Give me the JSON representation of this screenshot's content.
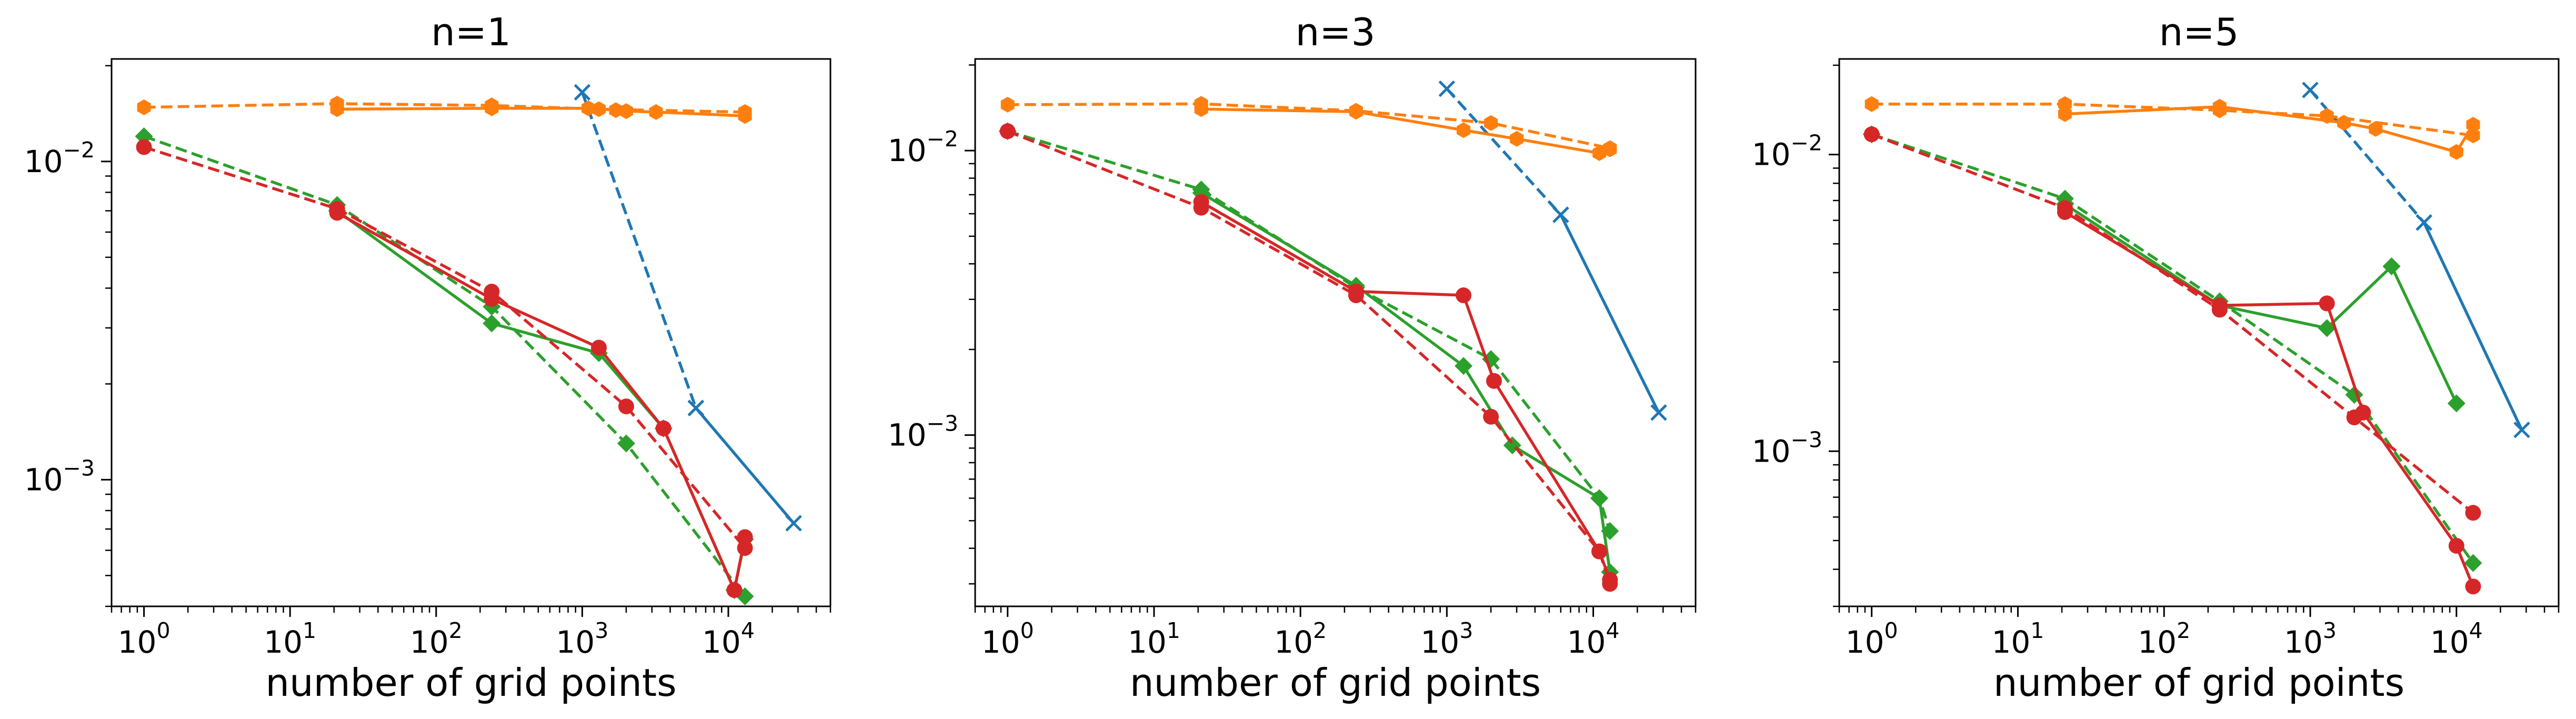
{
  "chart_data": [
    {
      "type": "line",
      "title": "n=1",
      "xlabel": "number of grid points",
      "ylabel": "",
      "xscale": "log",
      "yscale": "log",
      "xlim": [
        0.6,
        50000
      ],
      "ylim": [
        0.0004,
        0.021
      ],
      "xticks": [
        {
          "base": "10",
          "exp": "0",
          "value": 1
        },
        {
          "base": "10",
          "exp": "1",
          "value": 10
        },
        {
          "base": "10",
          "exp": "2",
          "value": 100
        },
        {
          "base": "10",
          "exp": "3",
          "value": 1000
        },
        {
          "base": "10",
          "exp": "4",
          "value": 10000
        }
      ],
      "yticks": [
        {
          "base": "10",
          "exp": "−2",
          "value": 0.01
        },
        {
          "base": "10",
          "exp": "−3",
          "value": 0.001
        }
      ],
      "grid": false,
      "legend": "none",
      "series": [
        {
          "color": "#1f77b4",
          "dash": true,
          "marker": "x",
          "points": [
            [
              1000,
              0.0165
            ],
            [
              6000,
              0.00168
            ]
          ]
        },
        {
          "color": "#1f77b4",
          "dash": false,
          "marker": "x",
          "points": [
            [
              6000,
              0.00168
            ],
            [
              28000,
              0.00073
            ]
          ]
        },
        {
          "color": "#ff7f0e",
          "dash": true,
          "marker": "hexagon",
          "points": [
            [
              1,
              0.0148
            ],
            [
              21,
              0.0152
            ],
            [
              240,
              0.015
            ],
            [
              1300,
              0.0146
            ],
            [
              13000,
              0.0143
            ]
          ]
        },
        {
          "color": "#ff7f0e",
          "dash": false,
          "marker": "hexagon",
          "points": [
            [
              21,
              0.0146
            ],
            [
              240,
              0.0147
            ],
            [
              1100,
              0.0147
            ],
            [
              1700,
              0.0145
            ],
            [
              2000,
              0.0144
            ],
            [
              3200,
              0.0143
            ],
            [
              13000,
              0.0139
            ]
          ]
        },
        {
          "color": "#2ca02c",
          "dash": true,
          "marker": "diamond",
          "points": [
            [
              1,
              0.012
            ],
            [
              21,
              0.0073
            ],
            [
              240,
              0.0035
            ],
            [
              2000,
              0.0013
            ],
            [
              13000,
              0.00043
            ]
          ]
        },
        {
          "color": "#2ca02c",
          "dash": false,
          "marker": "diamond",
          "points": [
            [
              21,
              0.007
            ],
            [
              240,
              0.0031
            ],
            [
              1300,
              0.0025
            ],
            [
              3600,
              0.00145
            ],
            [
              11000,
              0.00045
            ],
            [
              13000,
              0.00065
            ]
          ]
        },
        {
          "color": "#d62728",
          "dash": true,
          "marker": "circle",
          "points": [
            [
              1,
              0.0111
            ],
            [
              21,
              0.0071
            ],
            [
              240,
              0.0039
            ],
            [
              2000,
              0.0017
            ],
            [
              13000,
              0.00061
            ]
          ]
        },
        {
          "color": "#d62728",
          "dash": false,
          "marker": "circle",
          "points": [
            [
              21,
              0.0069
            ],
            [
              240,
              0.0037
            ],
            [
              1300,
              0.0026
            ],
            [
              3600,
              0.00145
            ],
            [
              11000,
              0.00045
            ],
            [
              13000,
              0.00066
            ]
          ]
        }
      ]
    },
    {
      "type": "line",
      "title": "n=3",
      "xlabel": "number of grid points",
      "ylabel": "",
      "xscale": "log",
      "yscale": "log",
      "xlim": [
        0.6,
        50000
      ],
      "ylim": [
        0.00025,
        0.021
      ],
      "xticks": [
        {
          "base": "10",
          "exp": "0",
          "value": 1
        },
        {
          "base": "10",
          "exp": "1",
          "value": 10
        },
        {
          "base": "10",
          "exp": "2",
          "value": 100
        },
        {
          "base": "10",
          "exp": "3",
          "value": 1000
        },
        {
          "base": "10",
          "exp": "4",
          "value": 10000
        }
      ],
      "yticks": [
        {
          "base": "10",
          "exp": "−2",
          "value": 0.01
        },
        {
          "base": "10",
          "exp": "−3",
          "value": 0.001
        }
      ],
      "grid": false,
      "legend": "none",
      "series": [
        {
          "color": "#1f77b4",
          "dash": true,
          "marker": "x",
          "points": [
            [
              1000,
              0.0165
            ],
            [
              6000,
              0.00595
            ]
          ]
        },
        {
          "color": "#1f77b4",
          "dash": false,
          "marker": "x",
          "points": [
            [
              6000,
              0.00595
            ],
            [
              28000,
              0.0012
            ]
          ]
        },
        {
          "color": "#ff7f0e",
          "dash": true,
          "marker": "hexagon",
          "points": [
            [
              1,
              0.0145
            ],
            [
              21,
              0.0146
            ],
            [
              240,
              0.0138
            ],
            [
              2000,
              0.0125
            ],
            [
              13000,
              0.0102
            ]
          ]
        },
        {
          "color": "#ff7f0e",
          "dash": false,
          "marker": "hexagon",
          "points": [
            [
              21,
              0.014
            ],
            [
              240,
              0.0137
            ],
            [
              1300,
              0.0118
            ],
            [
              3000,
              0.011
            ],
            [
              11000,
              0.0098
            ],
            [
              13000,
              0.0101
            ]
          ]
        },
        {
          "color": "#2ca02c",
          "dash": true,
          "marker": "diamond",
          "points": [
            [
              1,
              0.0117
            ],
            [
              21,
              0.0073
            ],
            [
              240,
              0.0033
            ],
            [
              2000,
              0.00185
            ],
            [
              11000,
              0.0006
            ],
            [
              13000,
              0.00046
            ]
          ]
        },
        {
          "color": "#2ca02c",
          "dash": false,
          "marker": "diamond",
          "points": [
            [
              21,
              0.0071
            ],
            [
              240,
              0.00335
            ],
            [
              1300,
              0.00175
            ],
            [
              2800,
              0.00092
            ],
            [
              11000,
              0.0006
            ],
            [
              13000,
              0.00033
            ]
          ]
        },
        {
          "color": "#d62728",
          "dash": true,
          "marker": "circle",
          "points": [
            [
              1,
              0.0117
            ],
            [
              21,
              0.0063
            ],
            [
              240,
              0.0031
            ],
            [
              2000,
              0.00116
            ],
            [
              11000,
              0.00039
            ],
            [
              13000,
              0.0003
            ]
          ]
        },
        {
          "color": "#d62728",
          "dash": false,
          "marker": "circle",
          "points": [
            [
              21,
              0.0066
            ],
            [
              240,
              0.0032
            ],
            [
              1300,
              0.0031
            ],
            [
              2100,
              0.00155
            ],
            [
              11000,
              0.00039
            ],
            [
              13000,
              0.00031
            ]
          ]
        }
      ]
    },
    {
      "type": "line",
      "title": "n=5",
      "xlabel": "number of grid points",
      "ylabel": "",
      "xscale": "log",
      "yscale": "log",
      "xlim": [
        0.6,
        50000
      ],
      "ylim": [
        0.0003,
        0.021
      ],
      "xticks": [
        {
          "base": "10",
          "exp": "0",
          "value": 1
        },
        {
          "base": "10",
          "exp": "1",
          "value": 10
        },
        {
          "base": "10",
          "exp": "2",
          "value": 100
        },
        {
          "base": "10",
          "exp": "3",
          "value": 1000
        },
        {
          "base": "10",
          "exp": "4",
          "value": 10000
        }
      ],
      "yticks": [
        {
          "base": "10",
          "exp": "−2",
          "value": 0.01
        },
        {
          "base": "10",
          "exp": "−3",
          "value": 0.001
        }
      ],
      "grid": false,
      "legend": "none",
      "series": [
        {
          "color": "#1f77b4",
          "dash": true,
          "marker": "x",
          "points": [
            [
              1000,
              0.0165
            ],
            [
              6000,
              0.0059
            ]
          ]
        },
        {
          "color": "#1f77b4",
          "dash": false,
          "marker": "x",
          "points": [
            [
              6000,
              0.0059
            ],
            [
              28000,
              0.00118
            ]
          ]
        },
        {
          "color": "#ff7f0e",
          "dash": true,
          "marker": "hexagon",
          "points": [
            [
              1,
              0.0148
            ],
            [
              21,
              0.0148
            ],
            [
              240,
              0.0141
            ],
            [
              1300,
              0.0135
            ],
            [
              13000,
              0.0116
            ]
          ]
        },
        {
          "color": "#ff7f0e",
          "dash": false,
          "marker": "hexagon",
          "points": [
            [
              21,
              0.0137
            ],
            [
              240,
              0.0145
            ],
            [
              1700,
              0.0128
            ],
            [
              2800,
              0.0122
            ],
            [
              10000,
              0.0102
            ],
            [
              13000,
              0.0126
            ]
          ]
        },
        {
          "color": "#2ca02c",
          "dash": true,
          "marker": "diamond",
          "points": [
            [
              1,
              0.0117
            ],
            [
              21,
              0.0071
            ],
            [
              240,
              0.0032
            ],
            [
              2000,
              0.00155
            ],
            [
              13000,
              0.00042
            ]
          ]
        },
        {
          "color": "#2ca02c",
          "dash": false,
          "marker": "diamond",
          "points": [
            [
              21,
              0.0068
            ],
            [
              240,
              0.0031
            ],
            [
              1300,
              0.0026
            ],
            [
              3600,
              0.0042
            ],
            [
              10000,
              0.00145
            ]
          ]
        },
        {
          "color": "#d62728",
          "dash": true,
          "marker": "circle",
          "points": [
            [
              1,
              0.0117
            ],
            [
              21,
              0.0066
            ],
            [
              240,
              0.003
            ],
            [
              2000,
              0.0013
            ],
            [
              13000,
              0.00062
            ]
          ]
        },
        {
          "color": "#d62728",
          "dash": false,
          "marker": "circle",
          "points": [
            [
              21,
              0.0064
            ],
            [
              240,
              0.0031
            ],
            [
              1300,
              0.00315
            ],
            [
              2300,
              0.00135
            ],
            [
              10000,
              0.00048
            ],
            [
              13000,
              0.00035
            ]
          ]
        }
      ]
    }
  ]
}
